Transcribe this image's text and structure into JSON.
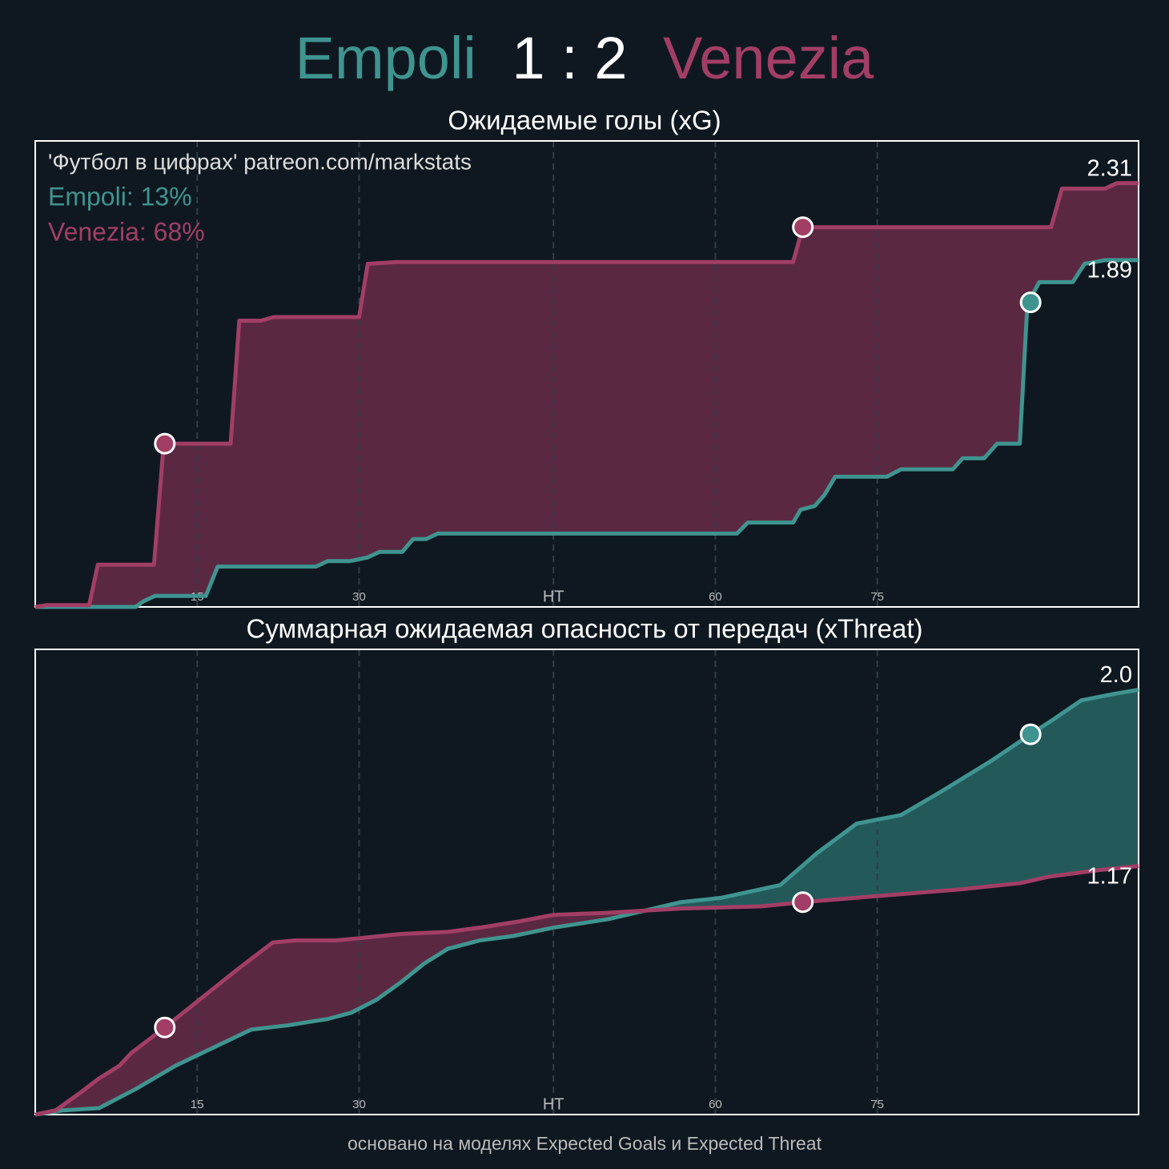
{
  "header": {
    "home": "Empoli",
    "score": "1 : 2",
    "away": "Venezia"
  },
  "footer": "основано на моделях Expected Goals и Expected Threat",
  "chart_data": [
    {
      "type": "line",
      "title": "Ожидаемые голы (xG)",
      "annotations": [
        "'Футбол в цифрах' patreon.com/markstats",
        "Empoli: 13%",
        "Venezia: 68%"
      ],
      "xlim": [
        0,
        102.2
      ],
      "ylim": [
        0,
        2.54
      ],
      "xticks": [
        15,
        30,
        {
          "value": 48,
          "label": "HT"
        },
        {
          "value": 63,
          "label": "60"
        },
        {
          "value": 78,
          "label": "75"
        }
      ],
      "grid": true,
      "series": [
        {
          "color": "#3f9490",
          "end_label": "1.89",
          "x": [
            0,
            9.3,
            10,
            11.1,
            15.8,
            16.9,
            26,
            27.1,
            29.2,
            30.8,
            31.9,
            34,
            35,
            36.2,
            37.3,
            65,
            66,
            70.2,
            70.9,
            72.2,
            73.1,
            74.1,
            78.9,
            80.2,
            85,
            85.9,
            87.9,
            89.1,
            91.2,
            91.9,
            93,
            96.1,
            97.2,
            99.1,
            102.2
          ],
          "values": [
            0,
            0,
            0.03,
            0.06,
            0.06,
            0.22,
            0.22,
            0.25,
            0.25,
            0.27,
            0.3,
            0.3,
            0.37,
            0.37,
            0.4,
            0.4,
            0.46,
            0.46,
            0.53,
            0.55,
            0.61,
            0.71,
            0.71,
            0.75,
            0.75,
            0.81,
            0.81,
            0.89,
            0.89,
            1.65,
            1.77,
            1.77,
            1.87,
            1.89,
            1.89
          ],
          "goal_x": [
            92.2
          ],
          "goal_y": [
            1.66
          ]
        },
        {
          "color": "#a23e66",
          "end_label": "2.31",
          "x": [
            0,
            1.1,
            5,
            5.8,
            11,
            11.9,
            18.1,
            18.9,
            20.9,
            22.1,
            30,
            30.8,
            33.5,
            70.2,
            71.1,
            94.1,
            95.1,
            99.1,
            100.2,
            102.2
          ],
          "values": [
            0,
            0.01,
            0.01,
            0.23,
            0.23,
            0.89,
            0.89,
            1.56,
            1.56,
            1.58,
            1.58,
            1.87,
            1.88,
            1.88,
            2.07,
            2.07,
            2.28,
            2.28,
            2.31,
            2.31
          ],
          "goal_x": [
            12,
            71.1
          ],
          "goal_y": [
            0.89,
            2.07
          ]
        }
      ]
    },
    {
      "type": "line",
      "title": "Суммарная ожидаемая опасность от передач (xThreat)",
      "xlim": [
        0,
        102.2
      ],
      "ylim": [
        0,
        2.19
      ],
      "xticks": [
        15,
        30,
        {
          "value": 48,
          "label": "HT"
        },
        {
          "value": 63,
          "label": "60"
        },
        {
          "value": 78,
          "label": "75"
        }
      ],
      "grid": true,
      "series": [
        {
          "color": "#3f9490",
          "end_label": "2.0",
          "x": [
            0,
            2.6,
            5.9,
            9.3,
            13,
            16.7,
            20,
            23.4,
            27.1,
            29.3,
            31.6,
            33.8,
            36,
            38.2,
            41.2,
            44.2,
            48,
            53.1,
            59.8,
            63.5,
            69,
            72.4,
            76.1,
            80.2,
            83.9,
            88.7,
            92.2,
            94.3,
            96.9,
            99.9,
            102.2
          ],
          "values": [
            0,
            0.02,
            0.03,
            0.12,
            0.23,
            0.32,
            0.4,
            0.42,
            0.45,
            0.48,
            0.54,
            0.62,
            0.71,
            0.78,
            0.82,
            0.84,
            0.88,
            0.92,
            1.0,
            1.02,
            1.08,
            1.23,
            1.37,
            1.41,
            1.52,
            1.67,
            1.79,
            1.86,
            1.95,
            1.98,
            2.0
          ],
          "goal_x": [
            92.2
          ],
          "goal_y": [
            1.79
          ]
        },
        {
          "color": "#a23e66",
          "end_label": "1.17",
          "x": [
            0,
            1.9,
            4.1,
            5.9,
            7.8,
            8.9,
            12,
            15.2,
            18.9,
            22,
            24.1,
            27.8,
            30,
            33.8,
            38.2,
            41.2,
            44.9,
            48,
            53.1,
            59.8,
            67.2,
            71.1,
            78.3,
            85.7,
            91.3,
            93.9,
            98.4,
            102.2
          ],
          "values": [
            0,
            0.02,
            0.1,
            0.17,
            0.23,
            0.29,
            0.41,
            0.54,
            0.69,
            0.81,
            0.82,
            0.82,
            0.83,
            0.85,
            0.86,
            0.88,
            0.91,
            0.94,
            0.95,
            0.97,
            0.98,
            1.0,
            1.03,
            1.06,
            1.09,
            1.12,
            1.15,
            1.17
          ],
          "goal_x": [
            12,
            71.1
          ],
          "goal_y": [
            0.41,
            1.0
          ]
        }
      ]
    }
  ]
}
